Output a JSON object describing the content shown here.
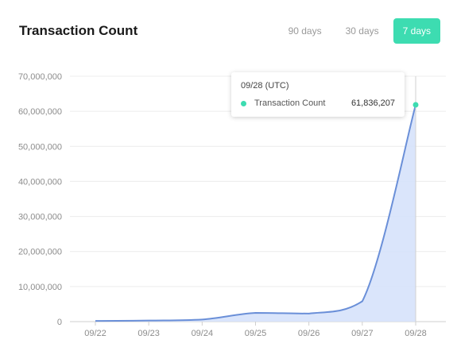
{
  "header": {
    "title": "Transaction Count"
  },
  "range_tabs": [
    {
      "label": "90 days",
      "active": false
    },
    {
      "label": "30 days",
      "active": false
    },
    {
      "label": "7 days",
      "active": true
    }
  ],
  "tooltip": {
    "date": "09/28 (UTC)",
    "label": "Transaction Count",
    "value": "61,836,207"
  },
  "colors": {
    "accent": "#3ddcb1",
    "line": "#6a8fd8",
    "area": "#d6e2fb"
  },
  "chart_data": {
    "type": "area",
    "title": "Transaction Count",
    "x": [
      "09/22",
      "09/23",
      "09/24",
      "09/25",
      "09/26",
      "09/27",
      "09/28"
    ],
    "series": [
      {
        "values": [
          200000,
          300000,
          600000,
          2500000,
          2300000,
          5800000,
          61836207
        ]
      }
    ],
    "ylim": [
      0,
      70000000
    ],
    "yticks": [
      "0",
      "10,000,000",
      "20,000,000",
      "30,000,000",
      "40,000,000",
      "50,000,000",
      "60,000,000",
      "70,000,000"
    ],
    "grid": true
  }
}
